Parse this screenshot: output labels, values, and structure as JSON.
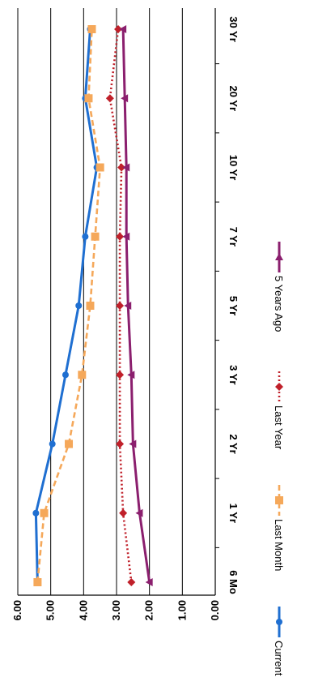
{
  "chart_data": {
    "type": "line",
    "orientation": "rotated-90-cw",
    "categories": [
      "6 Mo",
      "1 Yr",
      "2 Yr",
      "3 Yr",
      "5 Yr",
      "7 Yr",
      "10 Yr",
      "20 Yr",
      "30 Yr"
    ],
    "ylim": [
      0,
      6
    ],
    "yticks": [
      "0.00",
      "1.00",
      "2.00",
      "3.00",
      "4.00",
      "5.00",
      "6.00"
    ],
    "grid": true,
    "legend_placement": "bottom",
    "series": [
      {
        "name": "Current",
        "color": "#1f6fd1",
        "style": "solid",
        "marker": "circle",
        "values": [
          5.4,
          5.45,
          4.95,
          4.55,
          4.15,
          3.95,
          3.6,
          3.95,
          3.8
        ]
      },
      {
        "name": "Last Month",
        "color": "#f5a85a",
        "style": "dashed",
        "marker": "square",
        "values": [
          5.4,
          5.2,
          4.45,
          4.05,
          3.8,
          3.65,
          3.5,
          3.85,
          3.75
        ]
      },
      {
        "name": "Last Year",
        "color": "#c0202a",
        "style": "dotted",
        "marker": "diamond",
        "values": [
          2.55,
          2.8,
          2.9,
          2.9,
          2.9,
          2.9,
          2.85,
          3.2,
          2.95
        ]
      },
      {
        "name": "5 Years Ago",
        "color": "#8b1f6e",
        "style": "solid",
        "marker": "triangle",
        "values": [
          2.0,
          2.3,
          2.5,
          2.55,
          2.65,
          2.7,
          2.7,
          2.75,
          2.8
        ]
      }
    ]
  }
}
